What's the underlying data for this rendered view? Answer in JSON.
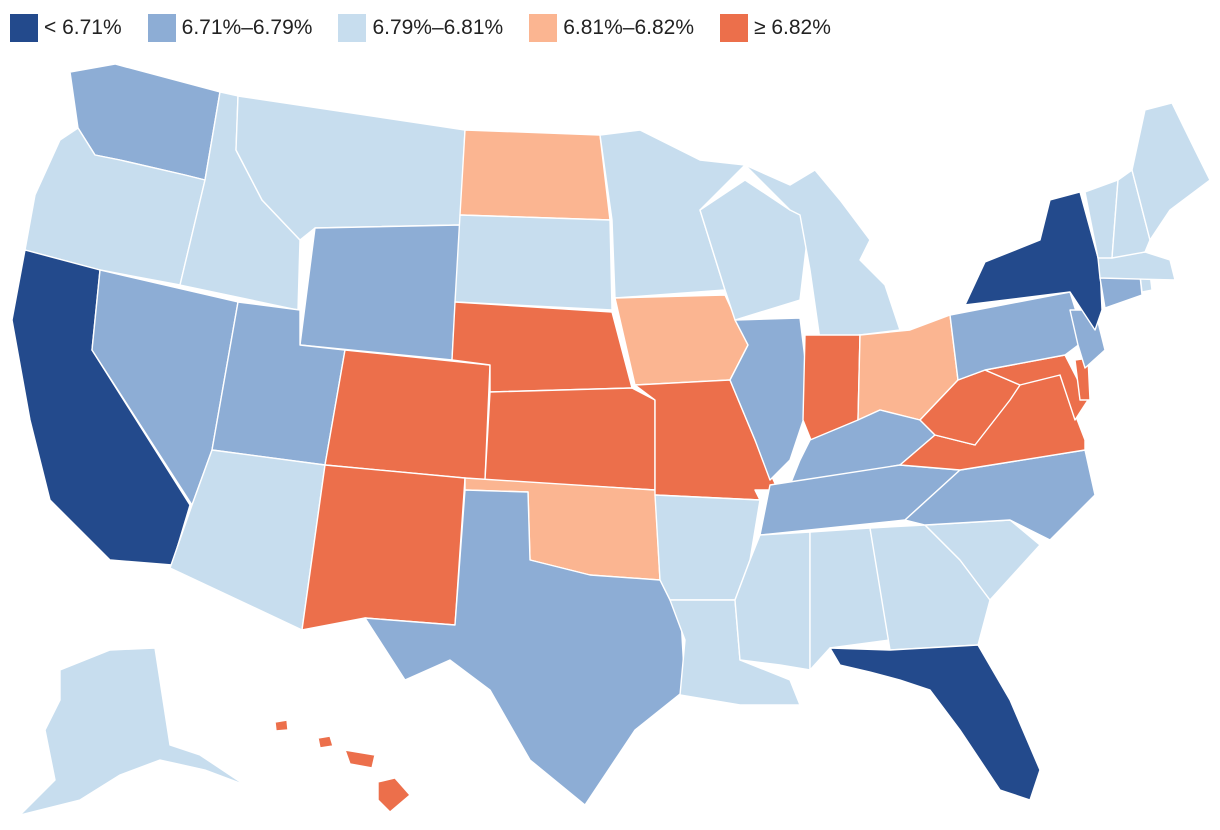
{
  "legend": [
    {
      "label": "< 6.71%",
      "color": "#234a8c"
    },
    {
      "label": "6.71%–6.79%",
      "color": "#8dadd5"
    },
    {
      "label": "6.79%–6.81%",
      "color": "#c7ddee"
    },
    {
      "label": "6.81%–6.82%",
      "color": "#fbb591"
    },
    {
      "label": "≥ 6.82%",
      "color": "#ec6f4b"
    }
  ],
  "states": {
    "WA": 1,
    "OR": 2,
    "CA": 0,
    "ID": 2,
    "NV": 1,
    "MT": 2,
    "WY": 1,
    "UT": 1,
    "AZ": 2,
    "CO": 4,
    "NM": 4,
    "ND": 3,
    "SD": 2,
    "NE": 4,
    "KS": 4,
    "OK": 3,
    "TX": 1,
    "MN": 2,
    "IA": 3,
    "MO": 4,
    "AR": 2,
    "LA": 2,
    "WI": 2,
    "IL": 1,
    "MI": 2,
    "IN": 4,
    "OH": 3,
    "KY": 1,
    "TN": 1,
    "MS": 2,
    "AL": 2,
    "GA": 2,
    "FL": 0,
    "SC": 2,
    "NC": 1,
    "VA": 4,
    "WV": 4,
    "MD": 4,
    "DE": 4,
    "PA": 1,
    "NJ": 1,
    "NY": 0,
    "CT": 1,
    "RI": 2,
    "MA": 2,
    "VT": 2,
    "NH": 2,
    "ME": 2,
    "AK": 2,
    "HI": 4
  }
}
